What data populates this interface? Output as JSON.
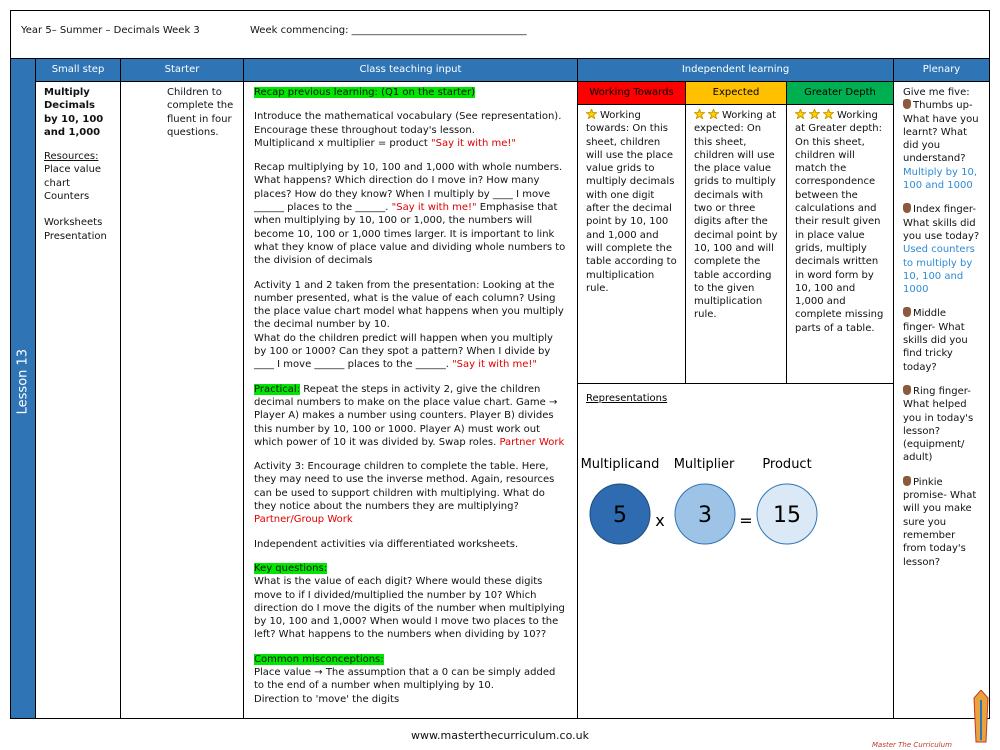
{
  "header": {
    "title": "Year 5– Summer – Decimals Week 3",
    "week": "Week commencing: ___________________________________"
  },
  "lesson": "Lesson 13",
  "columns": {
    "small_step": "Small step",
    "starter": "Starter",
    "teaching": "Class teaching input",
    "independent": "Independent learning",
    "plenary": "Plenary"
  },
  "small_step": {
    "title": "Multiply Decimals by 10, 100 and 1,000",
    "resources_label": "Resources:",
    "resources": [
      "Place value chart",
      "Counters"
    ],
    "extra": [
      "Worksheets",
      "Presentation"
    ]
  },
  "starter": "Children to complete the fluent in four questions.",
  "teaching": {
    "recap": "Recap previous learning: (Q1 on the starter)",
    "intro": [
      "Introduce the mathematical vocabulary (See representation).",
      "Encourage these throughout today's lesson.",
      "Multiplicand x multiplier = product ",
      "\"Say it with me!\""
    ],
    "p2": [
      "Recap multiplying by 10, 100 and 1,000 with whole numbers. What happens? Which direction do I move in? How many places? How do they know? When I multiply by ____ I move ______ places to the ______. ",
      "\"Say it with me!\"",
      " Emphasise that when multiplying by 10, 100 or 1,000, the numbers will become 10, 100 or 1,000 times larger. It is important to link what they know of place value and dividing whole numbers to the division of decimals"
    ],
    "p3": [
      "Activity 1 and 2 taken from the presentation: Looking at the number presented, what is the value of each column? Using the place value chart model what happens when you multiply the decimal number by 10.",
      "What do the children predict will happen when you multiply by 100 or 1000? Can they spot a pattern? When I divide by ____ I move ______ places to the ______. ",
      "\"Say it with me!\""
    ],
    "p4": [
      "Practical:",
      " Repeat the steps in activity 2, give the children decimal numbers to make on the place value chart. Game → Player A) makes a number using counters. Player B) divides this number by 10, 100 or 1000. Player A) must work out which power of 10 it was divided by. Swap roles. ",
      "Partner Work"
    ],
    "p5": [
      "Activity 3: Encourage children to complete the table. Here, they may need to use the inverse method. Again, resources can be used to support children with multiplying. What do they notice about the numbers they are multiplying? ",
      "Partner/Group Work"
    ],
    "p6": "Independent activities via differentiated worksheets.",
    "key": [
      "Key questions:",
      "What is the value of each digit? Where would these digits move to if I divided/multiplied the number by 10? Which direction do I move the digits of the number when multiplying by 10, 100 and 1,000? When would I move two places to the left? What happens to the numbers when dividing by 10??"
    ],
    "misconceptions": [
      "Common misconceptions:",
      "Place value → The assumption that a 0 can be simply added to the end of a number when multiplying by 10.",
      "Direction to 'move' the digits"
    ]
  },
  "independent": {
    "headings": [
      "Working Towards",
      "Expected",
      "Greater Depth"
    ],
    "texts": [
      "Working towards: On this sheet, children will use the place value grids to multiply decimals with one digit after the decimal point by 10, 100 and 1,000 and will complete the table according to multiplication rule.",
      "Working at expected: On this sheet, children will use the place value grids to multiply decimals with two or three digits after the decimal point by 10, 100 and will complete the table according to the given multiplication rule.",
      "Working at Greater depth: On this sheet, children will match the correspondence between the calculations and their result given in place value grids, multiply decimals written in word form by 10, 100 and 1,000 and complete missing parts of a table."
    ]
  },
  "representations": {
    "title": "Representations",
    "labels": [
      "Multiplicand",
      "Multiplier",
      "Product"
    ],
    "numbers": [
      "5",
      "3",
      "15"
    ],
    "ops": [
      "x",
      "="
    ]
  },
  "plenary": {
    "intro": "Give me five:",
    "items": [
      "Thumbs up- What have you learnt? What did you understand?",
      "Index finger- What skills did you use today?",
      "Middle finger- What skills did you find tricky today?",
      "Ring finger- What helped you in today's lesson? (equipment/ adult)",
      "Pinkie promise- What will you make sure you remember from today's lesson?"
    ],
    "notes": [
      "Multiply by 10, 100 and 1000",
      "Used counters to multiply by 10, 100 and 1000"
    ]
  },
  "footer": {
    "url": "www.masterthecurriculum.co.uk",
    "brand": "Master The Curriculum"
  }
}
